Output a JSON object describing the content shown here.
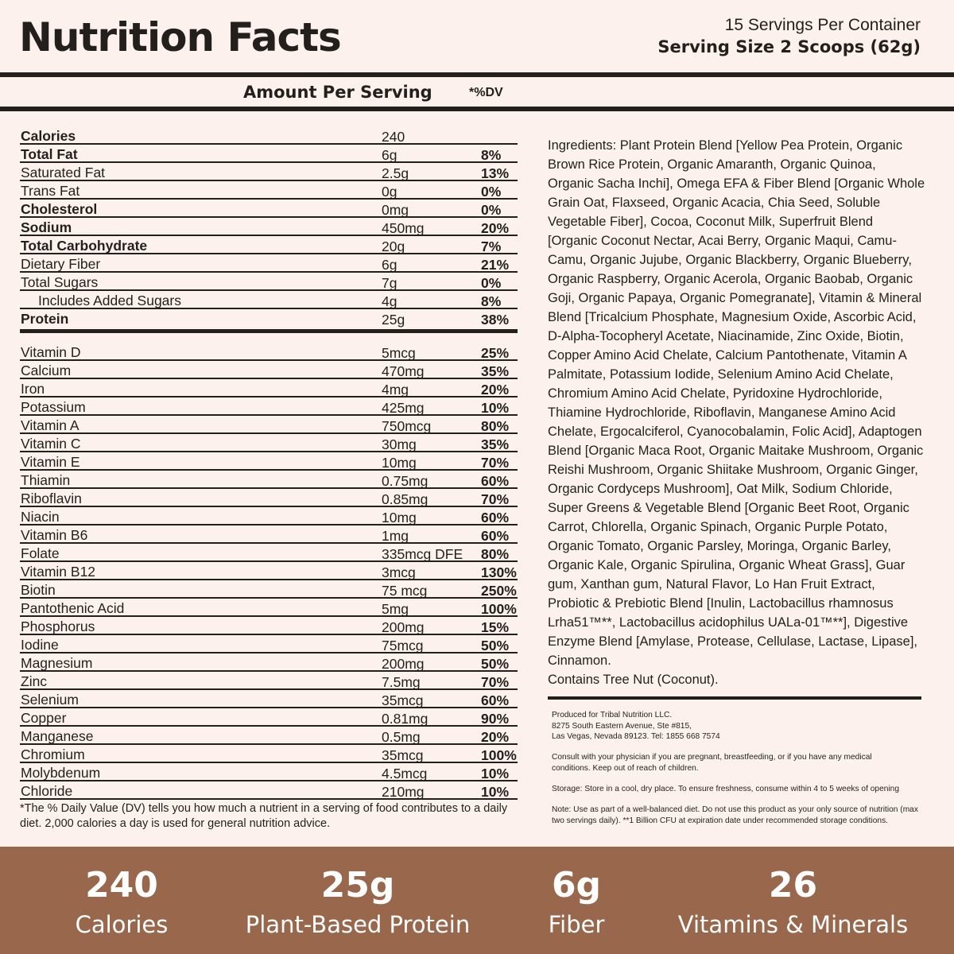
{
  "header": {
    "title": "Nutrition Facts",
    "servings": "15 Servings Per Container",
    "serving_size": "Serving Size 2 Scoops (62g)"
  },
  "columns": {
    "amount": "Amount Per Serving",
    "dv": "*%DV"
  },
  "macros": [
    {
      "name": "Calories",
      "amount": "240",
      "dv": "",
      "bold": true
    },
    {
      "name": "Total Fat",
      "amount": "6g",
      "dv": "8%",
      "bold": true
    },
    {
      "name": "Saturated Fat",
      "amount": "2.5g",
      "dv": "13%"
    },
    {
      "name": "Trans Fat",
      "amount": "0g",
      "dv": "0%"
    },
    {
      "name": "Cholesterol",
      "amount": "0mg",
      "dv": "0%",
      "bold": true
    },
    {
      "name": "Sodium",
      "amount": "450mg",
      "dv": "20%",
      "bold": true
    },
    {
      "name": "Total Carbohydrate",
      "amount": "20g",
      "dv": "7%",
      "bold": true
    },
    {
      "name": "Dietary Fiber",
      "amount": "6g",
      "dv": "21%"
    },
    {
      "name": "Total Sugars",
      "amount": "7g",
      "dv": "0%"
    },
    {
      "name": "Includes Added Sugars",
      "amount": "4g",
      "dv": "8%",
      "indent": true
    },
    {
      "name": "Protein",
      "amount": "25g",
      "dv": "38%",
      "bold": true
    }
  ],
  "micros": [
    {
      "name": "Vitamin D",
      "amount": "5mcg",
      "dv": "25%"
    },
    {
      "name": "Calcium",
      "amount": "470mg",
      "dv": "35%"
    },
    {
      "name": "Iron",
      "amount": "4mg",
      "dv": "20%"
    },
    {
      "name": "Potassium",
      "amount": "425mg",
      "dv": "10%"
    },
    {
      "name": "Vitamin A",
      "amount": "750mcg",
      "dv": "80%"
    },
    {
      "name": "Vitamin C",
      "amount": "30mg",
      "dv": "35%"
    },
    {
      "name": "Vitamin E",
      "amount": "10mg",
      "dv": "70%"
    },
    {
      "name": "Thiamin",
      "amount": "0.75mg",
      "dv": "60%"
    },
    {
      "name": "Riboflavin",
      "amount": "0.85mg",
      "dv": "70%"
    },
    {
      "name": "Niacin",
      "amount": "10mg",
      "dv": "60%"
    },
    {
      "name": "Vitamin B6",
      "amount": "1mg",
      "dv": "60%"
    },
    {
      "name": "Folate",
      "amount": "335mcg DFE",
      "dv": "80%"
    },
    {
      "name": "Vitamin B12",
      "amount": "3mcg",
      "dv": "130%"
    },
    {
      "name": "Biotin",
      "amount": "75 mcg",
      "dv": "250%"
    },
    {
      "name": "Pantothenic Acid",
      "amount": "5mg",
      "dv": "100%"
    },
    {
      "name": "Phosphorus",
      "amount": "200mg",
      "dv": "15%"
    },
    {
      "name": "Iodine",
      "amount": "75mcg",
      "dv": "50%"
    },
    {
      "name": "Magnesium",
      "amount": "200mg",
      "dv": "50%"
    },
    {
      "name": "Zinc",
      "amount": "7.5mg",
      "dv": "70%"
    },
    {
      "name": "Selenium",
      "amount": "35mcg",
      "dv": "60%"
    },
    {
      "name": "Copper",
      "amount": "0.81mg",
      "dv": "90%"
    },
    {
      "name": "Manganese",
      "amount": "0.5mg",
      "dv": "20%"
    },
    {
      "name": "Chromium",
      "amount": "35mcg",
      "dv": "100%"
    },
    {
      "name": "Molybdenum",
      "amount": "4.5mcg",
      "dv": "10%"
    },
    {
      "name": "Chloride",
      "amount": "210mg",
      "dv": "10%"
    }
  ],
  "footnote": "*The % Daily Value (DV) tells you how much a nutrient in a serving of food contributes to a daily diet. 2,000 calories a day is used for general nutrition advice.",
  "ingredients": "Ingredients: Plant Protein Blend [Yellow Pea Protein, Organic Brown Rice Protein, Organic Amaranth, Organic Quinoa, Organic Sacha Inchi], Omega EFA & Fiber Blend [Organic Whole Grain Oat, Flaxseed, Organic Acacia, Chia Seed, Soluble Vegetable Fiber], Cocoa, Coconut Milk, Superfruit Blend [Organic Coconut Nectar, Acai Berry, Organic Maqui, Camu-Camu, Organic Jujube, Organic Blackberry, Organic Blueberry, Organic Raspberry, Organic Acerola, Organic Baobab, Organic Goji, Organic Papaya, Organic Pomegranate], Vitamin & Mineral Blend [Tricalcium Phosphate, Magnesium Oxide, Ascorbic Acid, D-Alpha-Tocopheryl Acetate, Niacinamide, Zinc Oxide, Biotin, Copper Amino Acid Chelate, Calcium Pantothenate, Vitamin A Palmitate, Potassium Iodide, Selenium Amino Acid Chelate, Chromium Amino Acid Chelate, Pyridoxine Hydrochloride, Thiamine Hydrochloride, Riboflavin, Manganese Amino Acid Chelate, Ergocalciferol, Cyanocobalamin, Folic Acid], Adaptogen Blend [Organic Maca Root, Organic Maitake Mushroom, Organic Reishi Mushroom, Organic Shiitake Mushroom, Organic Ginger, Organic Cordyceps Mushroom], Oat Milk, Sodium Chloride, Super Greens & Vegetable Blend [Organic Beet Root, Organic Carrot, Chlorella, Organic Spinach, Organic Purple Potato, Organic Tomato, Organic Parsley, Moringa, Organic Barley, Organic Kale, Organic Spirulina, Organic Wheat Grass], Guar gum, Xanthan gum, Natural Flavor, Lo Han Fruit Extract, Probiotic & Prebiotic Blend [Inulin, Lactobacillus rhamnosus Lrha51™**, Lactobacillus acidophilus UALa-01™**], Digestive Enzyme Blend [Amylase, Protease, Cellulase, Lactase, Lipase], Cinnamon.",
  "allergen": "Contains Tree Nut (Coconut).",
  "producer": {
    "line1": "Produced for Tribal Nutrition LLC.",
    "line2": "8275 South Eastern Avenue, Ste #815,",
    "line3": "Las Vegas, Nevada 89123. Tel: 1855 668 7574"
  },
  "warning": "Consult with your physician if you are pregnant, breastfeeding, or if you have any medical conditions. Keep out of reach of children.",
  "storage": "Storage: Store in a cool, dry place. To ensure freshness, consume within 4 to 5 weeks of opening",
  "note": "Note: Use as part of a well-balanced diet. Do not use this product as your only source of nutrition (max two servings daily). **1 Billion CFU at expiration date under recommended storage conditions.",
  "highlights": [
    {
      "value": "240",
      "label": "Calories"
    },
    {
      "value": "25g",
      "label": "Plant-Based Protein"
    },
    {
      "value": "6g",
      "label": "Fiber"
    },
    {
      "value": "26",
      "label": "Vitamins & Minerals"
    }
  ],
  "colors": {
    "background": "#fcf1ec",
    "text": "#231f1c",
    "band": "#98674c"
  }
}
